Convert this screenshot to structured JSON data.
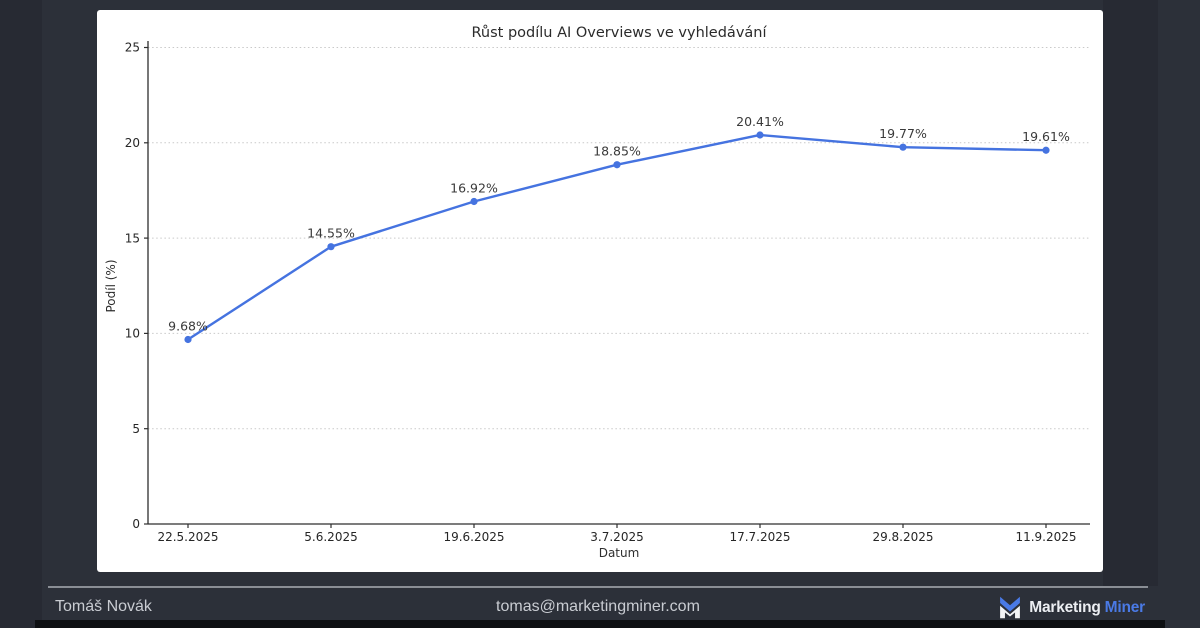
{
  "theme": {
    "background": "#2c3039",
    "card_background": "#ffffff",
    "accent_blue": "#4573e0",
    "footer_text_color": "#c9ccd2",
    "brand_accent": "#4a7ae6"
  },
  "chart_data": {
    "type": "line",
    "title": "Růst podílu AI Overviews ve vyhledávání",
    "xlabel": "Datum",
    "ylabel": "Podíl (%)",
    "categories": [
      "22.5.2025",
      "5.6.2025",
      "19.6.2025",
      "3.7.2025",
      "17.7.2025",
      "29.8.2025",
      "11.9.2025"
    ],
    "values": [
      9.68,
      14.55,
      16.92,
      18.85,
      20.41,
      19.77,
      19.61
    ],
    "point_labels": [
      "9.68%",
      "14.55%",
      "16.92%",
      "18.85%",
      "20.41%",
      "19.77%",
      "19.61%"
    ],
    "ylim": [
      0,
      25
    ],
    "yticks": [
      0,
      5,
      10,
      15,
      20,
      25
    ],
    "line_color": "#4573e0",
    "marker": "circle",
    "grid": "horizontal-dotted",
    "legend": "none"
  },
  "footer": {
    "author": "Tomáš Novák",
    "email": "tomas@marketingminer.com",
    "brand_word1": "Marketing",
    "brand_word2": "Miner",
    "logo": "marketing-miner-m-icon"
  }
}
